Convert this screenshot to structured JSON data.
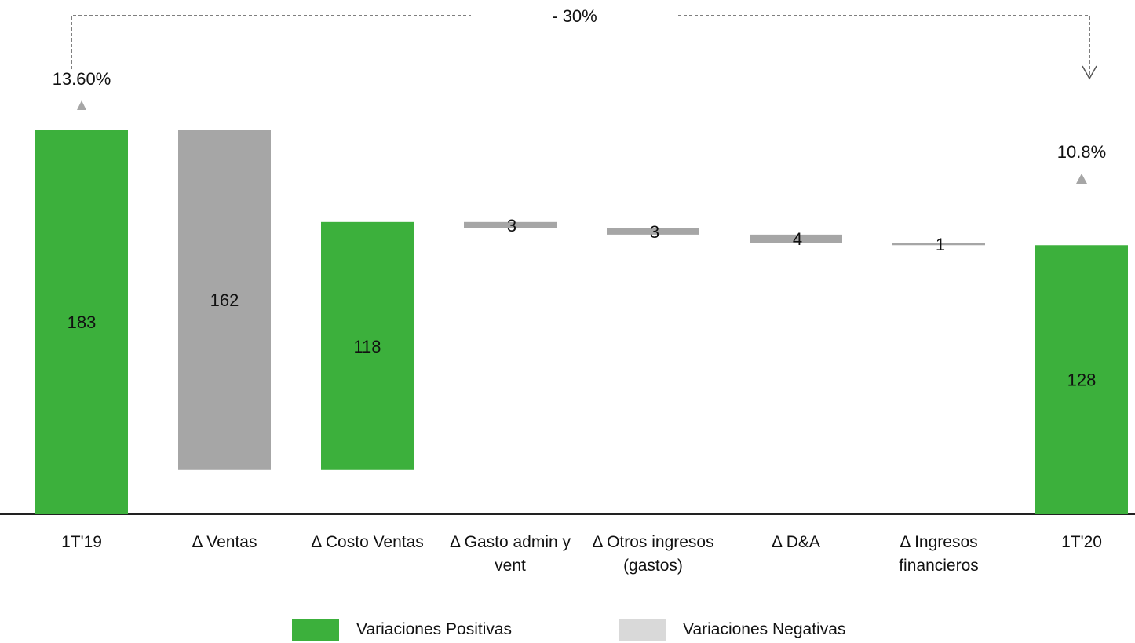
{
  "chart_data": {
    "type": "waterfall",
    "categories": [
      "1T'19",
      "Δ Ventas",
      "Δ Costo Ventas",
      "Δ Gasto admin y vent",
      "Δ Otros ingresos (gastos)",
      "Δ D&A",
      "Δ Ingresos financieros",
      "1T'20"
    ],
    "category_lines": [
      [
        "1T'19"
      ],
      [
        "Δ Ventas"
      ],
      [
        "Δ Costo Ventas"
      ],
      [
        "Δ Gasto admin y",
        "vent"
      ],
      [
        "Δ Otros ingresos",
        "(gastos)"
      ],
      [
        "Δ D&A"
      ],
      [
        "Δ Ingresos",
        "financieros"
      ],
      [
        "1T'20"
      ]
    ],
    "values": [
      183,
      -162,
      118,
      -3,
      -3,
      -4,
      -1,
      128
    ],
    "data_labels": [
      "183",
      "162",
      "118",
      "3",
      "3",
      "4",
      "1",
      "128"
    ],
    "bar_kind": [
      "total",
      "negative",
      "positive",
      "negative",
      "negative",
      "negative",
      "negative",
      "total"
    ],
    "margin_labels": {
      "start": "13.60%",
      "end": "10.8%"
    },
    "change_label": "- 30%",
    "legend": [
      {
        "name": "Variaciones Positivas",
        "color": "#3cb03c"
      },
      {
        "name": "Variaciones Negativas",
        "color": "#d9d9d9"
      }
    ],
    "colors": {
      "positive": "#3cb03c",
      "negative_bar": "#a6a6a6",
      "arrow": "#a6a6a6",
      "bracket": "#555555",
      "axis": "#222222"
    },
    "ylim": [
      0,
      183
    ]
  }
}
